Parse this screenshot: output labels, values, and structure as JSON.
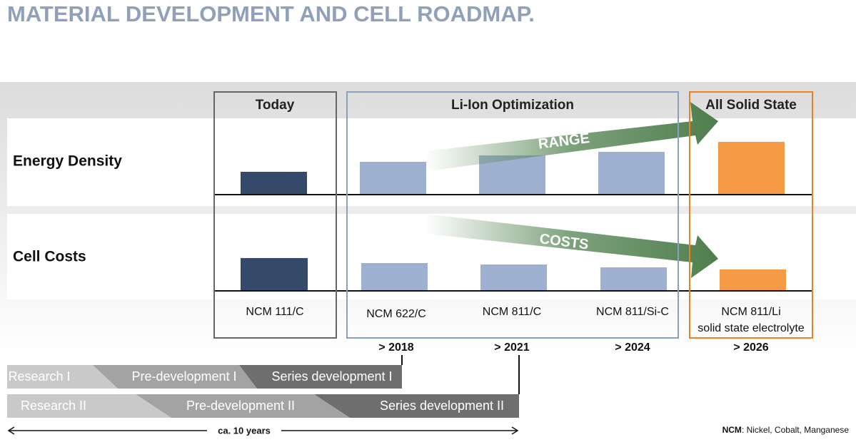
{
  "header": {
    "title": "MATERIAL DEVELOPMENT AND CELL ROADMAP."
  },
  "groups": [
    "Today",
    "Li-Ion Optimization",
    "All Solid State"
  ],
  "rows": [
    "Energy Density",
    "Cell Costs"
  ],
  "trends": [
    "RANGE",
    "COSTS"
  ],
  "materials": [
    [
      "NCM 111/C"
    ],
    [
      "NCM 622/C"
    ],
    [
      "NCM 811/C"
    ],
    [
      "NCM 811/Si-C"
    ],
    [
      "NCM 811/Li",
      "solid state electrolyte"
    ]
  ],
  "years": [
    "> 2018",
    "> 2021",
    "> 2024",
    "> 2026"
  ],
  "phases": [
    [
      "Research I",
      "Pre-development I",
      "Series development I"
    ],
    [
      "Research II",
      "Pre-development II",
      "Series development II"
    ]
  ],
  "duration": "ca. 10 years",
  "footnote": {
    "term": "NCM",
    "text": ": Nickel, Cobalt, Manganese"
  }
}
